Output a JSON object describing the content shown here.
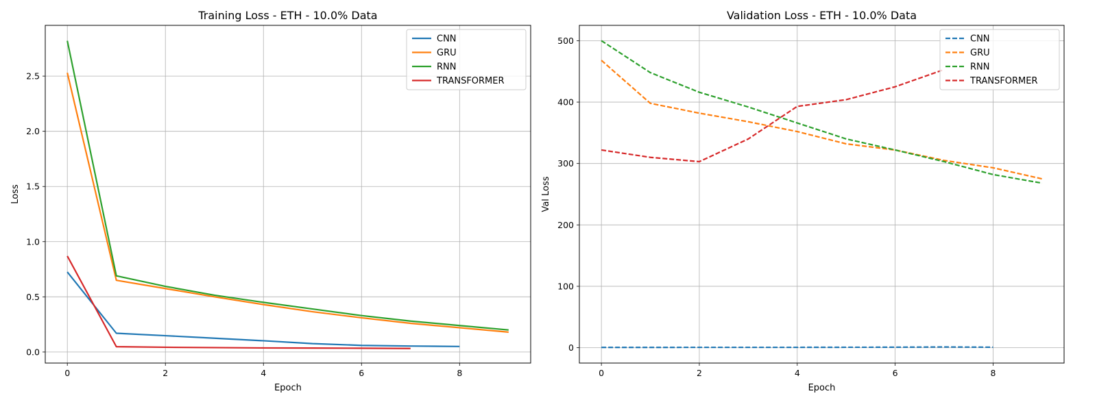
{
  "chart_data": [
    {
      "type": "line",
      "title": "Training Loss - ETH - 10.0% Data",
      "xlabel": "Epoch",
      "ylabel": "Loss",
      "xlim": [
        -0.45,
        9.45
      ],
      "ylim": [
        -0.1,
        2.96
      ],
      "xticks": [
        0,
        2,
        4,
        6,
        8
      ],
      "yticks": [
        0.0,
        0.5,
        1.0,
        1.5,
        2.0,
        2.5
      ],
      "tick_decimals": 1,
      "grid": true,
      "legend_position": "top-right",
      "line_style": "solid",
      "series": [
        {
          "name": "CNN",
          "color": "#1f77b4",
          "x": [
            0,
            1,
            2,
            3,
            4,
            5,
            6,
            7,
            8
          ],
          "values": [
            0.725,
            0.17,
            0.148,
            0.125,
            0.102,
            0.076,
            0.06,
            0.054,
            0.05
          ]
        },
        {
          "name": "GRU",
          "color": "#ff7f0e",
          "x": [
            0,
            1,
            2,
            3,
            4,
            5,
            6,
            7,
            8,
            9
          ],
          "values": [
            2.53,
            0.65,
            0.575,
            0.5,
            0.43,
            0.365,
            0.31,
            0.26,
            0.22,
            0.18
          ]
        },
        {
          "name": "RNN",
          "color": "#2ca02c",
          "x": [
            0,
            1,
            2,
            3,
            4,
            5,
            6,
            7,
            8,
            9
          ],
          "values": [
            2.82,
            0.69,
            0.595,
            0.515,
            0.45,
            0.39,
            0.33,
            0.28,
            0.24,
            0.2
          ]
        },
        {
          "name": "TRANSFORMER",
          "color": "#d62728",
          "x": [
            0,
            1,
            2,
            3,
            4,
            5,
            6,
            7
          ],
          "values": [
            0.87,
            0.048,
            0.043,
            0.04,
            0.037,
            0.036,
            0.034,
            0.032
          ]
        }
      ]
    },
    {
      "type": "line",
      "title": "Validation Loss - ETH - 10.0% Data",
      "xlabel": "Epoch",
      "ylabel": "Val Loss",
      "xlim": [
        -0.45,
        9.45
      ],
      "ylim": [
        -25,
        525
      ],
      "xticks": [
        0,
        2,
        4,
        6,
        8
      ],
      "yticks": [
        0,
        100,
        200,
        300,
        400,
        500
      ],
      "tick_decimals": 0,
      "grid": true,
      "legend_position": "top-right",
      "line_style": "dashed",
      "series": [
        {
          "name": "CNN",
          "color": "#1f77b4",
          "x": [
            0,
            1,
            2,
            3,
            4,
            5,
            6,
            7,
            8
          ],
          "values": [
            0.5,
            0.5,
            0.6,
            0.6,
            0.6,
            0.7,
            0.8,
            1.2,
            0.8
          ]
        },
        {
          "name": "GRU",
          "color": "#ff7f0e",
          "x": [
            0,
            1,
            2,
            3,
            4,
            5,
            6,
            7,
            8,
            9
          ],
          "values": [
            468,
            398,
            382,
            368,
            352,
            332,
            322,
            305,
            293,
            275
          ]
        },
        {
          "name": "RNN",
          "color": "#2ca02c",
          "x": [
            0,
            1,
            2,
            3,
            4,
            5,
            6,
            7,
            8,
            9
          ],
          "values": [
            500,
            448,
            416,
            392,
            366,
            340,
            322,
            303,
            282,
            268
          ]
        },
        {
          "name": "TRANSFORMER",
          "color": "#d62728",
          "x": [
            0,
            1,
            2,
            3,
            4,
            5,
            6,
            7
          ],
          "values": [
            322,
            310,
            303,
            340,
            393,
            404,
            425,
            453
          ]
        }
      ]
    }
  ]
}
